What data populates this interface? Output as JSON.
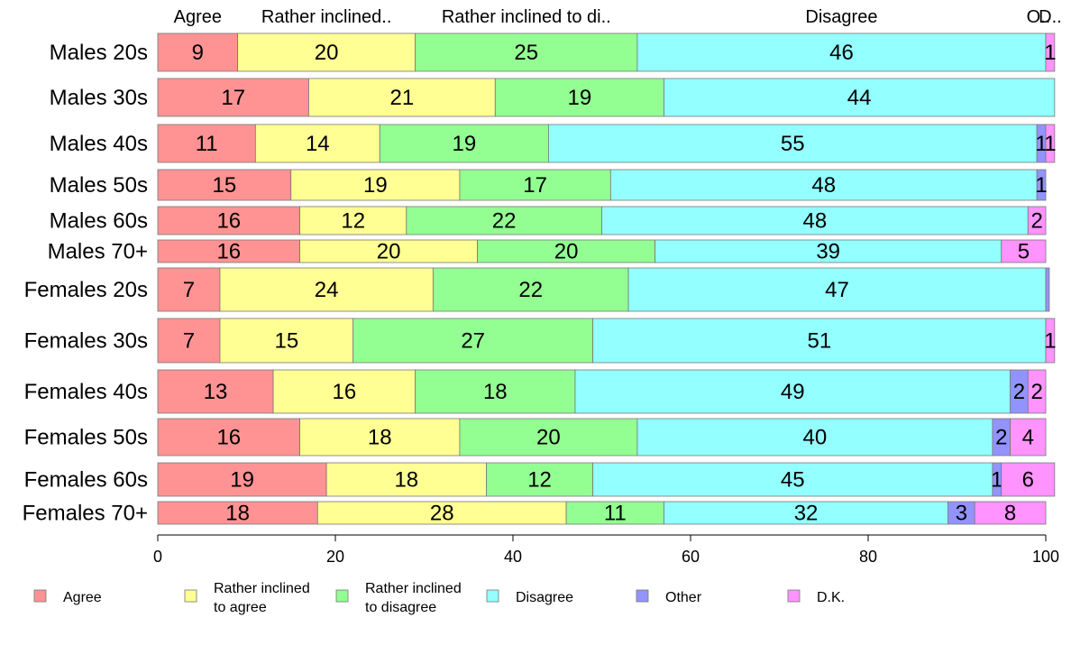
{
  "chart_data": {
    "type": "bar",
    "orientation": "horizontal",
    "stacked": true,
    "categories": [
      "Males 20s",
      "Males 30s",
      "Males 40s",
      "Males 50s",
      "Males 60s",
      "Males 70+",
      "Females 20s",
      "Females 30s",
      "Females 40s",
      "Females 50s",
      "Females 60s",
      "Females 70+"
    ],
    "series": [
      {
        "name": "Agree",
        "top_label": "Agree",
        "legend_lines": [
          "Agree"
        ],
        "color": "#ff9393",
        "values": [
          9,
          17,
          11,
          15,
          16,
          16,
          7,
          7,
          13,
          16,
          19,
          18
        ]
      },
      {
        "name": "Rather inclined to agree",
        "top_label": "Rather inclined..",
        "legend_lines": [
          "Rather inclined",
          "to agree"
        ],
        "color": "#ffff93",
        "values": [
          20,
          21,
          14,
          19,
          12,
          20,
          24,
          15,
          16,
          18,
          18,
          28
        ]
      },
      {
        "name": "Rather inclined to disagree",
        "top_label": "Rather inclined to di..",
        "legend_lines": [
          "Rather inclined",
          "to disagree"
        ],
        "color": "#93ff93",
        "values": [
          25,
          19,
          19,
          17,
          22,
          20,
          22,
          27,
          18,
          20,
          12,
          11
        ]
      },
      {
        "name": "Disagree",
        "top_label": "Disagree",
        "legend_lines": [
          "Disagree"
        ],
        "color": "#93ffff",
        "values": [
          46,
          44,
          55,
          48,
          48,
          39,
          47,
          51,
          49,
          40,
          45,
          32
        ]
      },
      {
        "name": "Other",
        "top_label": "O..",
        "legend_lines": [
          "Other"
        ],
        "color": "#9393ff",
        "values": [
          0,
          0,
          1,
          1,
          0,
          0,
          0.4,
          0,
          2,
          2,
          1,
          3
        ]
      },
      {
        "name": "D.K.",
        "top_label": "D..",
        "legend_lines": [
          "D.K."
        ],
        "color": "#ff93ff",
        "values": [
          1,
          0,
          1,
          0,
          2,
          5,
          0,
          1,
          2,
          4,
          6,
          8
        ]
      }
    ],
    "xlim": [
      0,
      100
    ],
    "xticks": [
      0,
      20,
      40,
      60,
      80,
      100
    ],
    "grid": false,
    "legend_position": "bottom"
  }
}
